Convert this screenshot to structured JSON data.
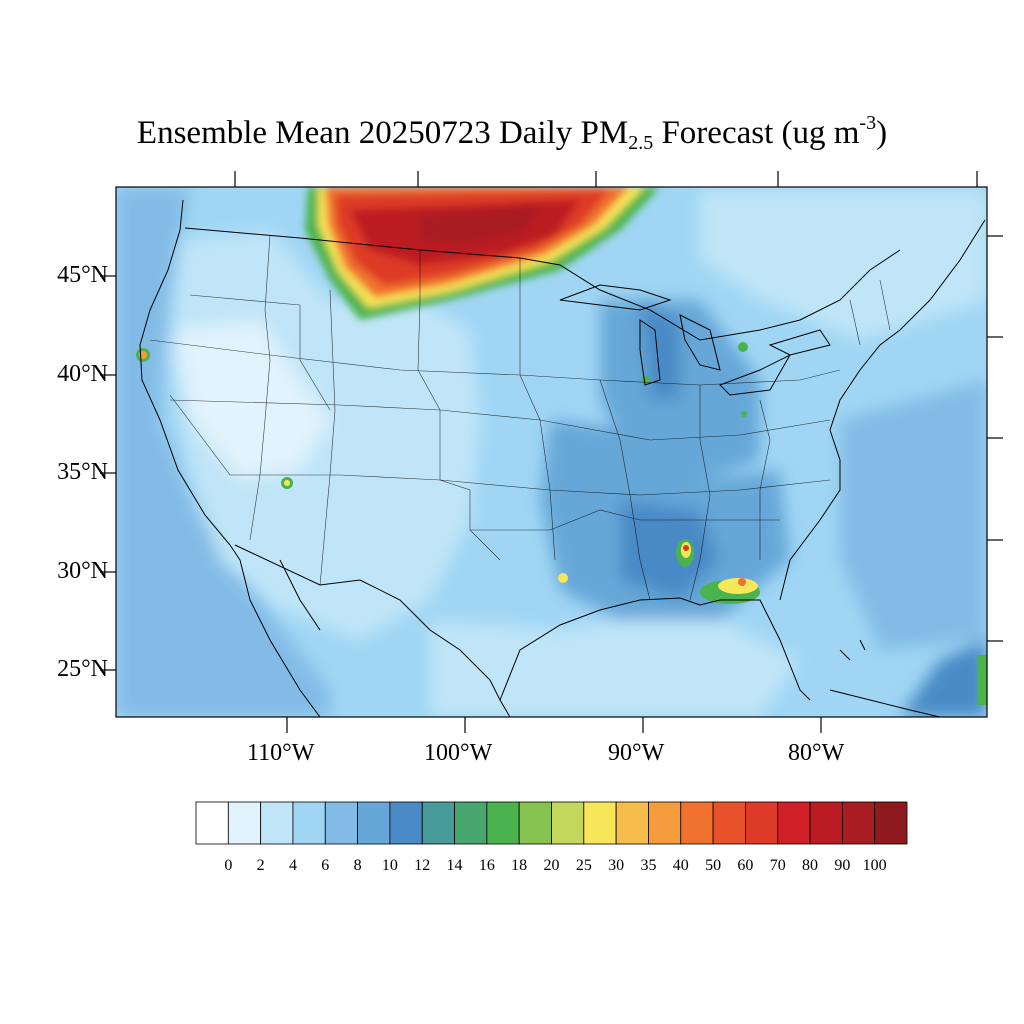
{
  "title": {
    "prefix": "Ensemble Mean 20250723 Daily PM",
    "sub": "2.5",
    "mid": " Forecast (ug m",
    "sup": "-3",
    "suffix": ")"
  },
  "lat_labels": [
    "45°N",
    "40°N",
    "35°N",
    "30°N",
    "25°N"
  ],
  "lon_labels": [
    "110°W",
    "100°W",
    "90°W",
    "80°W"
  ],
  "colorbar": {
    "colors": [
      "#ffffff",
      "#e1f3fc",
      "#c0e5f8",
      "#a0d6f4",
      "#82bce6",
      "#66a7d8",
      "#4a8ac6",
      "#479b9b",
      "#47a66e",
      "#4ab34e",
      "#87c350",
      "#c3d75c",
      "#f8e65a",
      "#f6bc4c",
      "#f59c3d",
      "#f0722e",
      "#e9512b",
      "#dd3a28",
      "#d02027",
      "#bb1c24",
      "#a91c22",
      "#8e1a1e"
    ],
    "labels": [
      "0",
      "2",
      "4",
      "6",
      "8",
      "10",
      "12",
      "14",
      "16",
      "18",
      "20",
      "25",
      "30",
      "35",
      "40",
      "50",
      "60",
      "70",
      "80",
      "90",
      "100"
    ]
  }
}
